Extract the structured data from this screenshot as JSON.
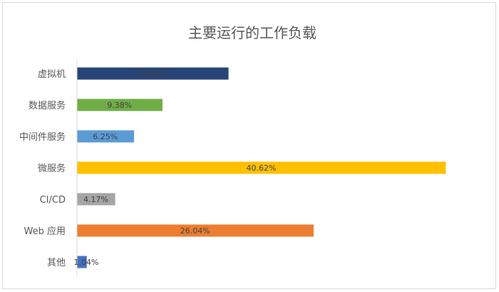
{
  "chart_data": {
    "type": "bar",
    "orientation": "horizontal",
    "title": "主要运行的工作负载",
    "categories": [
      "虚拟机",
      "数据服务",
      "中间件服务",
      "微服务",
      "CI/CD",
      "Web 应用",
      "其他"
    ],
    "values": [
      16.66,
      9.38,
      6.25,
      40.62,
      4.17,
      26.04,
      1.04
    ],
    "value_labels": [
      "16.66%",
      "9.38%",
      "6.25%",
      "40.62%",
      "4.17%",
      "26.04%",
      "1.04%"
    ],
    "colors": [
      "#264478",
      "#70ad47",
      "#5b9bd5",
      "#ffc000",
      "#a5a5a5",
      "#ed7d31",
      "#4472c4"
    ],
    "xlim": [
      0,
      40.62
    ],
    "grid": false,
    "legend": "none"
  }
}
